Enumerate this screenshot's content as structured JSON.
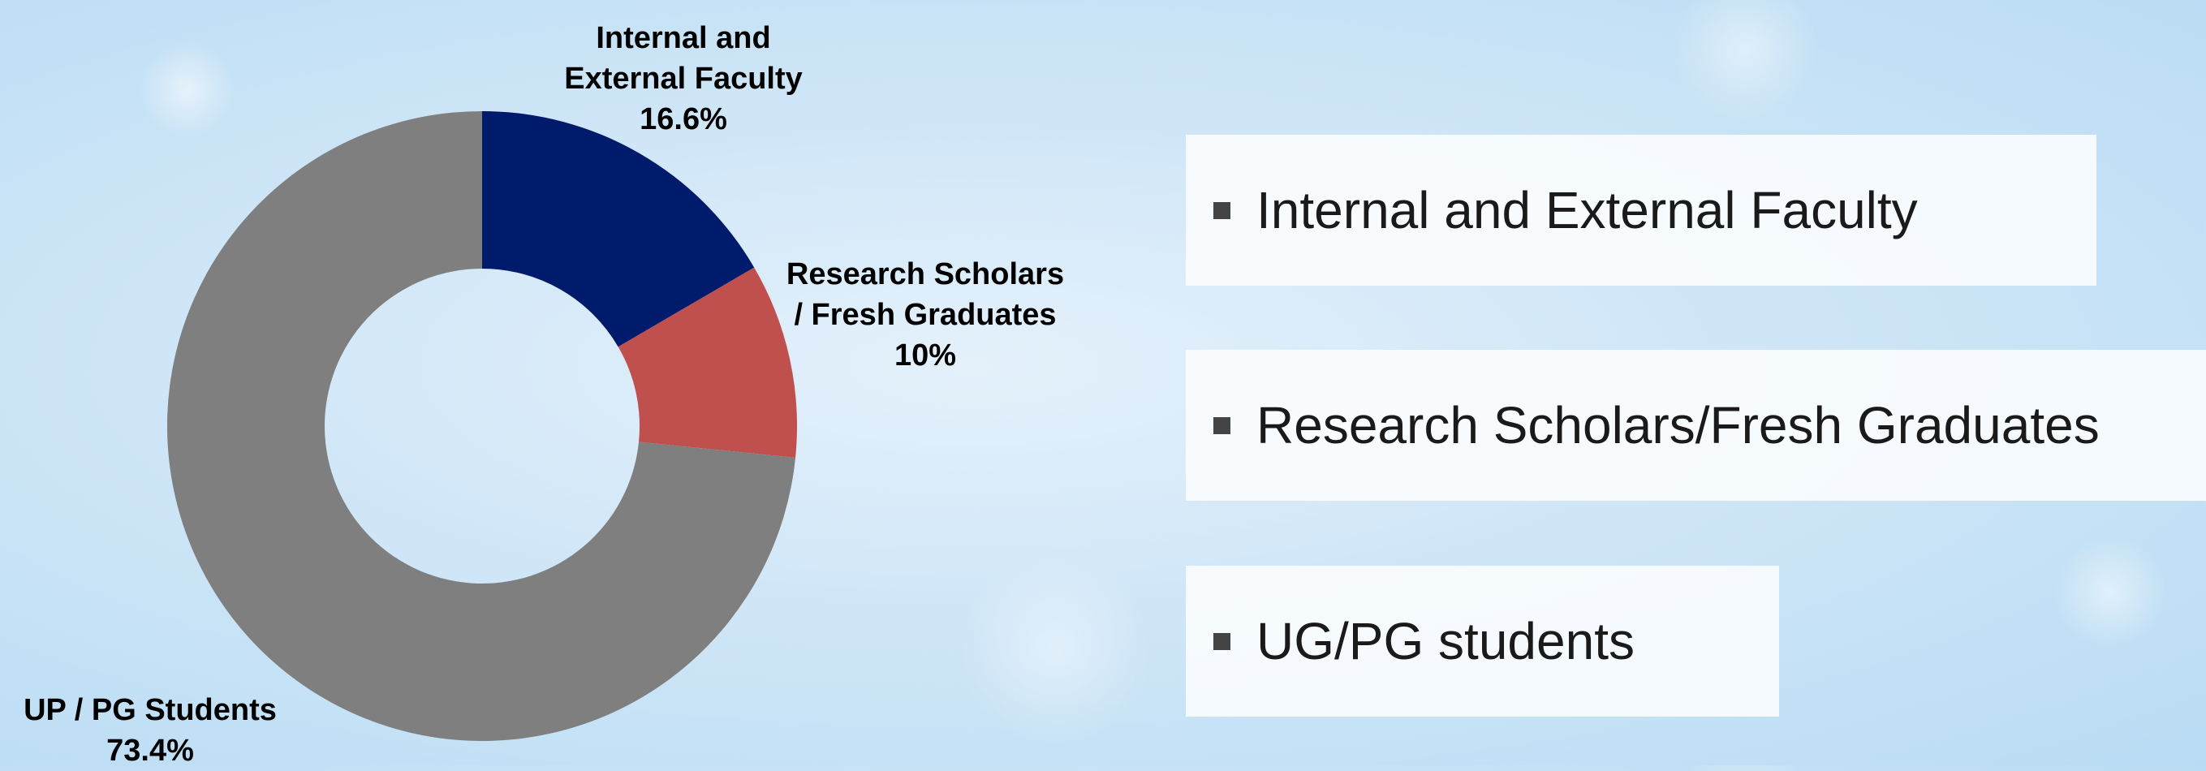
{
  "chart_data": {
    "type": "donut",
    "categories": [
      "Internal and External Faculty",
      "Research Scholars / Fresh Graduates",
      "UP / PG Students"
    ],
    "values": [
      16.6,
      10,
      73.4
    ],
    "value_labels": [
      "16.6%",
      "10%",
      "73.4%"
    ],
    "colors": [
      "#001b6b",
      "#c0504d",
      "#7f7f7f"
    ],
    "legend": [
      "Internal and External Faculty",
      "Research Scholars/Fresh Graduates",
      "UG/PG students"
    ]
  }
}
